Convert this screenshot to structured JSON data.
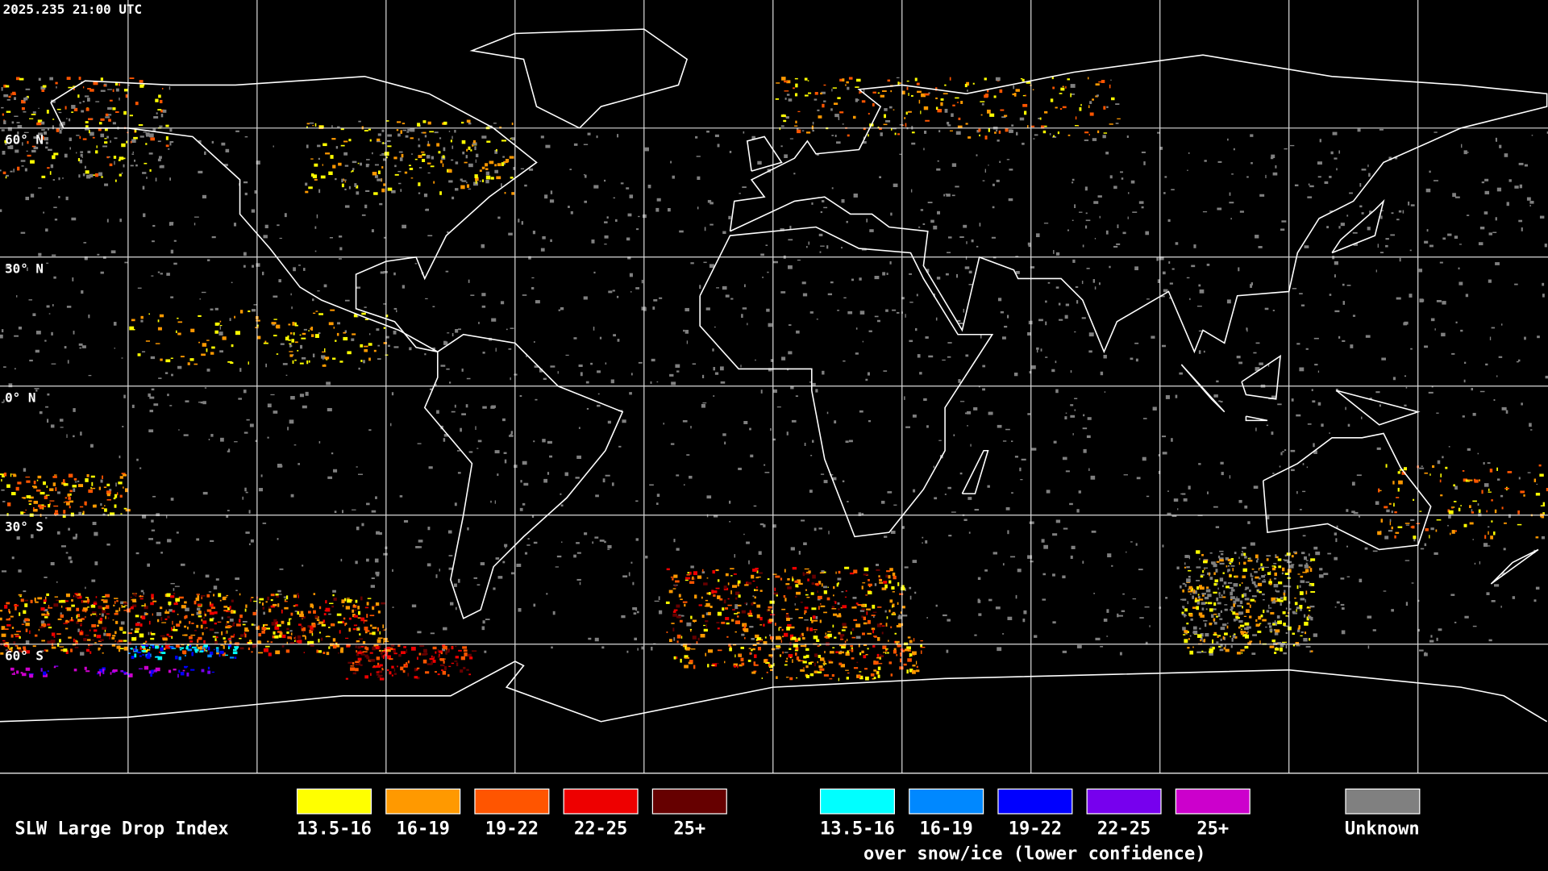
{
  "header": {
    "timestamp": "2025.235 21:00 UTC"
  },
  "map": {
    "latitude_labels": [
      "60° N",
      "30° N",
      "0° N",
      "30° S",
      "60° S"
    ]
  },
  "legend": {
    "title": "SLW Large Drop Index",
    "standard": [
      {
        "label": "13.5-16",
        "color": "#ffff00"
      },
      {
        "label": "16-19",
        "color": "#ff9900"
      },
      {
        "label": "19-22",
        "color": "#ff5500"
      },
      {
        "label": "22-25",
        "color": "#ee0000"
      },
      {
        "label": "25+",
        "color": "#660000"
      }
    ],
    "snow_ice": [
      {
        "label": "13.5-16",
        "color": "#00ffff"
      },
      {
        "label": "16-19",
        "color": "#0088ff"
      },
      {
        "label": "19-22",
        "color": "#0000ff"
      },
      {
        "label": "22-25",
        "color": "#7700ee"
      },
      {
        "label": "25+",
        "color": "#cc00cc"
      }
    ],
    "snow_ice_caption": "over snow/ice (lower confidence)",
    "unknown": {
      "label": "Unknown",
      "color": "#808080"
    }
  }
}
